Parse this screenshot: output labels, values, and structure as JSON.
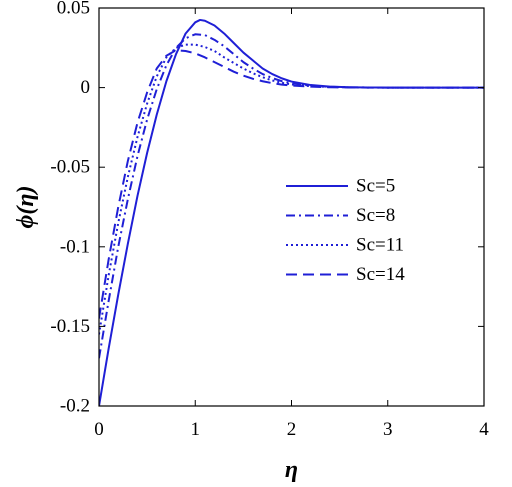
{
  "chart_data": {
    "type": "line",
    "xlabel": "η",
    "ylabel": "ϕ(η)",
    "xlim": [
      0,
      4
    ],
    "ylim": [
      -0.2,
      0.05
    ],
    "xticks": [
      0,
      1,
      2,
      3,
      4
    ],
    "xtick_labels": [
      "0",
      "1",
      "2",
      "3",
      "4"
    ],
    "yticks": [
      -0.2,
      -0.15,
      -0.1,
      -0.05,
      0,
      0.05
    ],
    "ytick_labels": [
      "-0.2",
      "-0.15",
      "-0.1",
      "-0.05",
      "0",
      "0.05"
    ],
    "grid": false,
    "legend_position": "center-right",
    "line_color": "#1f1fd6",
    "series": [
      {
        "name": "Sc=5",
        "dash": "solid",
        "x": [
          0,
          0.1,
          0.2,
          0.3,
          0.4,
          0.5,
          0.6,
          0.7,
          0.8,
          0.9,
          1.0,
          1.05,
          1.1,
          1.2,
          1.3,
          1.4,
          1.5,
          1.6,
          1.7,
          1.8,
          1.9,
          2.0,
          2.2,
          2.4,
          2.6,
          2.8,
          3.0,
          3.5,
          4.0
        ],
        "y": [
          -0.2,
          -0.164,
          -0.13,
          -0.098,
          -0.068,
          -0.041,
          -0.017,
          0.004,
          0.021,
          0.034,
          0.041,
          0.0425,
          0.042,
          0.039,
          0.034,
          0.028,
          0.022,
          0.017,
          0.012,
          0.0085,
          0.0058,
          0.0038,
          0.0016,
          0.0006,
          0.0002,
          0.0001,
          0,
          0,
          0
        ]
      },
      {
        "name": "Sc=8",
        "dash": "dashdot",
        "x": [
          0,
          0.1,
          0.2,
          0.3,
          0.4,
          0.5,
          0.6,
          0.7,
          0.8,
          0.9,
          1.0,
          1.1,
          1.2,
          1.3,
          1.4,
          1.5,
          1.6,
          1.7,
          1.8,
          1.9,
          2.0,
          2.2,
          2.4,
          2.6,
          2.8,
          3.0,
          3.5,
          4.0
        ],
        "y": [
          -0.17,
          -0.134,
          -0.1,
          -0.07,
          -0.043,
          -0.02,
          -0.001,
          0.014,
          0.025,
          0.031,
          0.0335,
          0.033,
          0.03,
          0.026,
          0.021,
          0.016,
          0.012,
          0.0085,
          0.006,
          0.004,
          0.0027,
          0.0012,
          0.0005,
          0.0002,
          0.0001,
          0,
          0,
          0
        ]
      },
      {
        "name": "Sc=11",
        "dash": "dotted",
        "x": [
          0,
          0.1,
          0.2,
          0.3,
          0.4,
          0.5,
          0.6,
          0.7,
          0.8,
          0.9,
          1.0,
          1.1,
          1.2,
          1.3,
          1.4,
          1.5,
          1.6,
          1.7,
          1.8,
          1.9,
          2.0,
          2.2,
          2.4,
          2.6,
          2.8,
          3.0,
          3.5,
          4.0
        ],
        "y": [
          -0.155,
          -0.118,
          -0.085,
          -0.056,
          -0.031,
          -0.01,
          0.007,
          0.019,
          0.025,
          0.027,
          0.027,
          0.0255,
          0.023,
          0.019,
          0.0155,
          0.012,
          0.009,
          0.0065,
          0.0045,
          0.003,
          0.002,
          0.0009,
          0.0004,
          0.0001,
          0,
          0,
          0,
          0
        ]
      },
      {
        "name": "Sc=14",
        "dash": "dashed",
        "x": [
          0,
          0.1,
          0.2,
          0.3,
          0.4,
          0.5,
          0.6,
          0.7,
          0.8,
          0.9,
          1.0,
          1.1,
          1.2,
          1.3,
          1.4,
          1.5,
          1.6,
          1.7,
          1.8,
          1.9,
          2.0,
          2.2,
          2.4,
          2.6,
          2.8,
          3.0,
          3.5,
          4.0
        ],
        "y": [
          -0.145,
          -0.108,
          -0.075,
          -0.046,
          -0.022,
          -0.003,
          0.012,
          0.02,
          0.0235,
          0.023,
          0.0215,
          0.019,
          0.016,
          0.013,
          0.01,
          0.0075,
          0.0055,
          0.004,
          0.0028,
          0.0019,
          0.0013,
          0.0006,
          0.0002,
          0.0001,
          0,
          0,
          0,
          0
        ]
      }
    ]
  }
}
